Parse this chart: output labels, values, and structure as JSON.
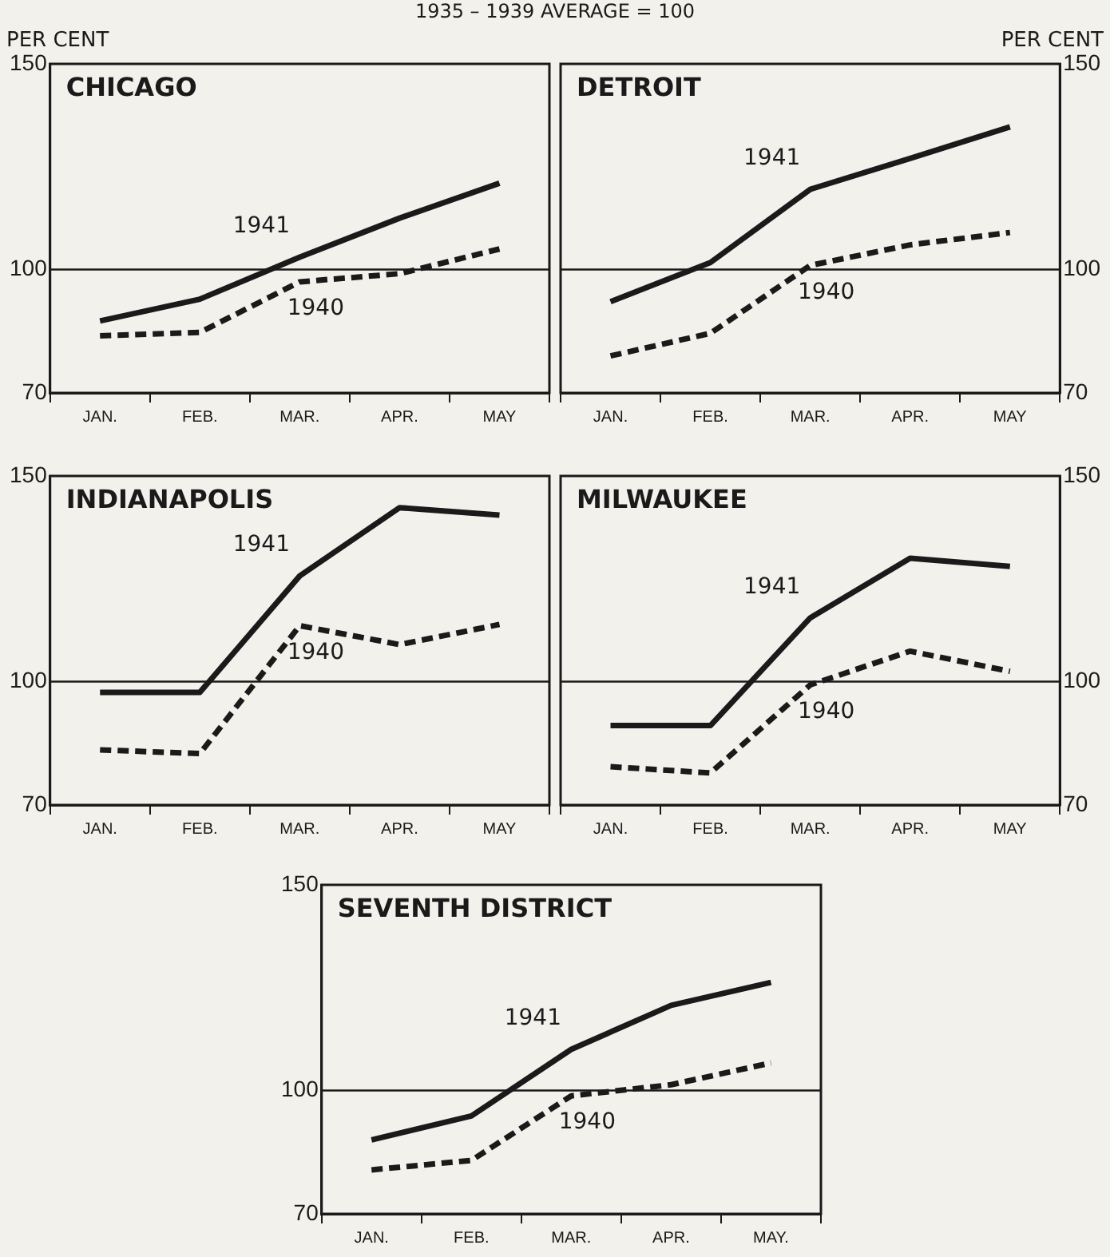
{
  "chart_data": [
    {
      "type": "line",
      "title": "CHICAGO",
      "subtitle": "1935 – 1939 AVERAGE = 100",
      "ylabel": "PER CENT",
      "categories": [
        "JAN.",
        "FEB.",
        "MAR.",
        "APR.",
        "MAY"
      ],
      "ylim": [
        70,
        150
      ],
      "yticks": [
        70,
        100,
        150
      ],
      "grid": false,
      "ref_lines": [
        {
          "axis": "y",
          "value": 100
        }
      ],
      "series": [
        {
          "name": "1941",
          "color": "#1a1a1a",
          "line_style": "solid",
          "values": [
            87.5,
            92.8,
            103,
            112.5,
            121
          ]
        },
        {
          "name": "1940",
          "color": "#1a1a1a",
          "line_style": "dashed",
          "values": [
            83.9,
            84.7,
            97,
            99,
            105
          ]
        }
      ]
    },
    {
      "type": "line",
      "title": "DETROIT",
      "y2label": "PER CENT",
      "categories": [
        "JAN.",
        "FEB.",
        "MAR.",
        "APR.",
        "MAY"
      ],
      "y2lim": [
        70,
        150
      ],
      "y2ticks": [
        70,
        100,
        150
      ],
      "grid": false,
      "ref_lines": [
        {
          "axis": "y2",
          "value": 100
        }
      ],
      "series": [
        {
          "name": "1941",
          "color": "#1a1a1a",
          "line_style": "solid",
          "axis": "y2",
          "values": [
            92.2,
            101.7,
            119.5,
            127,
            134.7
          ]
        },
        {
          "name": "1940",
          "color": "#1a1a1a",
          "line_style": "dashed",
          "axis": "y2",
          "values": [
            79,
            84.5,
            101,
            106,
            109
          ]
        }
      ]
    },
    {
      "type": "line",
      "title": "INDIANAPOLIS",
      "categories": [
        "JAN.",
        "FEB.",
        "MAR.",
        "APR.",
        "MAY"
      ],
      "ylim": [
        70,
        150
      ],
      "yticks": [
        70,
        100,
        150
      ],
      "grid": false,
      "ref_lines": [
        {
          "axis": "y",
          "value": 100
        }
      ],
      "series": [
        {
          "name": "1941",
          "color": "#1a1a1a",
          "line_style": "solid",
          "values": [
            97.4,
            97.4,
            125.7,
            142.3,
            140.5
          ]
        },
        {
          "name": "1940",
          "color": "#1a1a1a",
          "line_style": "dashed",
          "values": [
            83.4,
            82.5,
            113.6,
            109,
            113.9
          ]
        }
      ]
    },
    {
      "type": "line",
      "title": "MILWAUKEE",
      "categories": [
        "JAN.",
        "FEB.",
        "MAR.",
        "APR.",
        "MAY"
      ],
      "y2lim": [
        70,
        150
      ],
      "y2ticks": [
        70,
        100,
        150
      ],
      "grid": false,
      "ref_lines": [
        {
          "axis": "y2",
          "value": 100
        }
      ],
      "series": [
        {
          "name": "1941",
          "color": "#1a1a1a",
          "line_style": "solid",
          "axis": "y2",
          "values": [
            89.3,
            89.3,
            115.5,
            130,
            128
          ]
        },
        {
          "name": "1940",
          "color": "#1a1a1a",
          "line_style": "dashed",
          "axis": "y2",
          "values": [
            79.3,
            77.8,
            99.2,
            107.4,
            102.5
          ]
        }
      ]
    },
    {
      "type": "line",
      "title": "SEVENTH DISTRICT",
      "categories": [
        "JAN.",
        "FEB.",
        "MAR.",
        "APR.",
        "MAY."
      ],
      "ylim": [
        70,
        150
      ],
      "yticks": [
        70,
        100,
        150
      ],
      "grid": false,
      "ref_lines": [
        {
          "axis": "y",
          "value": 100
        }
      ],
      "series": [
        {
          "name": "1941",
          "color": "#1a1a1a",
          "line_style": "solid",
          "values": [
            88,
            93.8,
            110,
            120.7,
            126.3
          ]
        },
        {
          "name": "1940",
          "color": "#1a1a1a",
          "line_style": "dashed",
          "values": [
            80.7,
            83,
            98.7,
            101.4,
            106.7
          ]
        }
      ]
    }
  ]
}
